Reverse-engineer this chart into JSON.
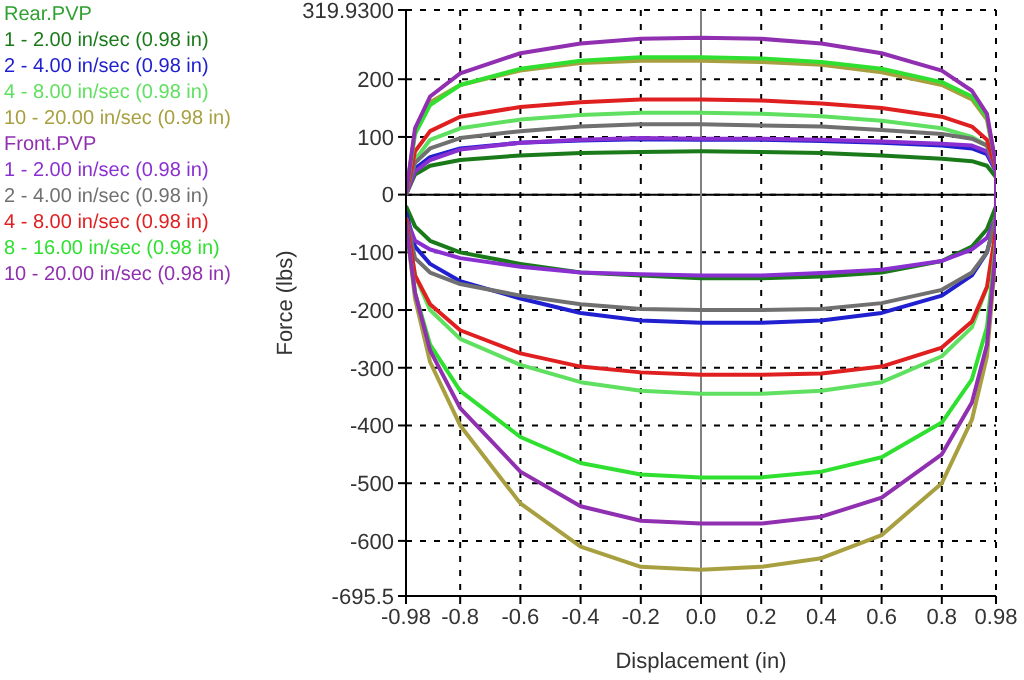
{
  "chart_data": {
    "type": "line",
    "xlabel": "Displacement (in)",
    "ylabel": "Force (lbs)",
    "annotations": [
      "Rear.PVP",
      "Front.PVP"
    ],
    "xlim": [
      -0.98,
      0.98
    ],
    "ylim": [
      -695.5,
      319.93
    ],
    "xticks": [
      {
        "value": -0.98,
        "label": "-0.98"
      },
      -0.8,
      -0.6,
      -0.4,
      -0.2,
      {
        "value": 0,
        "label": "0.0"
      },
      0.2,
      0.4,
      0.6,
      0.8,
      {
        "value": 0.98,
        "label": "0.98"
      }
    ],
    "yticks": [
      {
        "value": -695.5,
        "label": "-695.5"
      },
      -600,
      -500,
      -400,
      -300,
      -200,
      -100,
      0,
      100,
      200,
      {
        "value": 319.93,
        "label": "319.9300"
      }
    ],
    "x": [
      -0.98,
      -0.95,
      -0.9,
      -0.8,
      -0.6,
      -0.4,
      -0.2,
      0,
      0.2,
      0.4,
      0.6,
      0.8,
      0.9,
      0.95,
      0.98,
      0.98,
      0.95,
      0.9,
      0.8,
      0.6,
      0.4,
      0.2,
      0,
      -0.2,
      -0.4,
      -0.6,
      -0.8,
      -0.9,
      -0.95,
      -0.98
    ],
    "grid": true,
    "legend": "left",
    "marker": "none",
    "line_style": "solid",
    "ref_lines": [
      {
        "axis": "y",
        "value": 0,
        "color": "#000000"
      },
      {
        "axis": "x",
        "value": 0,
        "color": "#808080"
      }
    ],
    "series": [
      {
        "name": "1 - 2.00 in/sec (0.98 in)",
        "color": "#1a7a1a",
        "values": [
          0,
          35,
          50,
          60,
          68,
          72,
          74,
          75,
          74,
          72,
          68,
          62,
          58,
          50,
          30,
          -20,
          -60,
          -90,
          -115,
          -135,
          -142,
          -145,
          -145,
          -140,
          -135,
          -120,
          -100,
          -80,
          -55,
          -20
        ]
      },
      {
        "name": "2 - 4.00 in/sec (0.98 in)",
        "color": "#2020d0",
        "values": [
          0,
          45,
          65,
          80,
          90,
          94,
          96,
          95,
          95,
          93,
          90,
          85,
          80,
          70,
          40,
          -40,
          -100,
          -140,
          -175,
          -205,
          -218,
          -222,
          -222,
          -218,
          -205,
          -180,
          -150,
          -120,
          -90,
          -30
        ]
      },
      {
        "name": "4 - 8.00 in/sec (0.98 in)",
        "color": "#60e060",
        "values": [
          0,
          60,
          95,
          115,
          130,
          138,
          142,
          142,
          140,
          136,
          128,
          115,
          100,
          85,
          40,
          null,
          -160,
          -230,
          -280,
          -325,
          -340,
          -345,
          -345,
          -340,
          -325,
          -295,
          -250,
          -200,
          -140,
          -40
        ]
      },
      {
        "name": "10 - 20.00 in/sec (0.98 in)",
        "color": "#a8a040",
        "values": [
          0,
          110,
          160,
          190,
          215,
          228,
          232,
          232,
          230,
          225,
          212,
          190,
          165,
          130,
          50,
          -100,
          -280,
          -390,
          -500,
          -590,
          -630,
          -645,
          -650,
          -645,
          -610,
          -535,
          -400,
          -290,
          -180,
          -50
        ]
      },
      {
        "name": "1 - 2.00 in/sec (0.98 in)",
        "color": "#8a30d0",
        "values": [
          0,
          40,
          60,
          78,
          90,
          95,
          98,
          97,
          97,
          95,
          92,
          88,
          85,
          75,
          40,
          -40,
          -75,
          -95,
          -115,
          -130,
          -136,
          -140,
          -140,
          -138,
          -135,
          -125,
          -110,
          -95,
          -80,
          -40
        ]
      },
      {
        "name": "2 - 4.00 in/sec (0.98 in)",
        "color": "#707070",
        "values": [
          0,
          55,
          80,
          98,
          110,
          118,
          122,
          122,
          120,
          118,
          112,
          105,
          97,
          85,
          45,
          -40,
          -100,
          -135,
          -165,
          -188,
          -198,
          -200,
          -200,
          -198,
          -190,
          -175,
          -155,
          -135,
          -110,
          -40
        ]
      },
      {
        "name": "4 - 8.00 in/sec (0.98 in)",
        "color": "#e02020",
        "values": [
          0,
          75,
          110,
          135,
          152,
          160,
          165,
          165,
          163,
          158,
          150,
          135,
          118,
          95,
          45,
          -60,
          -160,
          -220,
          -265,
          -298,
          -310,
          -312,
          -312,
          -308,
          -298,
          -275,
          -235,
          -190,
          -140,
          -40
        ]
      },
      {
        "name": "8 - 16.00 in/sec (0.98 in)",
        "color": "#30e030",
        "values": [
          0,
          105,
          155,
          190,
          218,
          232,
          238,
          238,
          236,
          230,
          218,
          195,
          170,
          135,
          50,
          -80,
          -230,
          -320,
          -395,
          -455,
          -480,
          -490,
          -490,
          -485,
          -465,
          -420,
          -340,
          -260,
          -170,
          -50
        ]
      },
      {
        "name": "10 - 20.00 in/sec (0.98 in)",
        "color": "#9030b0",
        "values": [
          0,
          115,
          170,
          210,
          245,
          262,
          270,
          272,
          270,
          262,
          245,
          215,
          180,
          140,
          50,
          -90,
          -260,
          -360,
          -450,
          -525,
          -558,
          -570,
          -570,
          -565,
          -540,
          -480,
          -370,
          -270,
          -170,
          -50
        ]
      }
    ]
  }
}
